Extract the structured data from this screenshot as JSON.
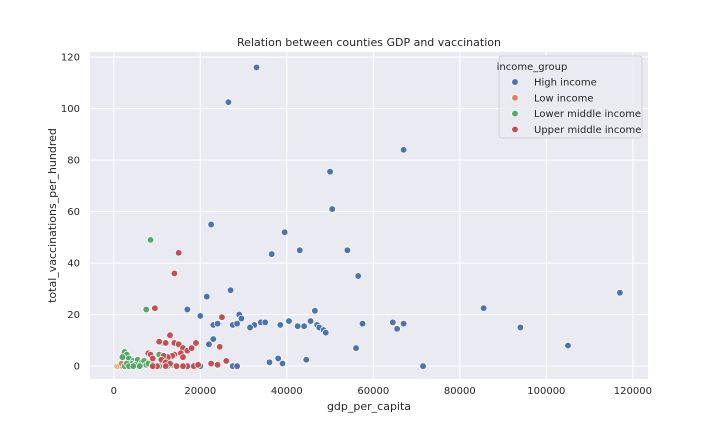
{
  "chart_data": {
    "type": "scatter",
    "title": "Relation between counties GDP and vaccination",
    "xlabel": "gdp_per_capita",
    "ylabel": "total_vaccinations_per_hundred",
    "xlim": [
      -5500,
      123500
    ],
    "ylim": [
      -5,
      122
    ],
    "xticks": [
      0,
      20000,
      40000,
      60000,
      80000,
      100000,
      120000
    ],
    "yticks": [
      0,
      20,
      40,
      60,
      80,
      100,
      120
    ],
    "grid": true,
    "legend": {
      "title": "income_group",
      "position": "top-right"
    },
    "series": [
      {
        "name": "High income",
        "color": "#4c72b0",
        "points": [
          [
            33000,
            116
          ],
          [
            26500,
            102.5
          ],
          [
            67000,
            84
          ],
          [
            50000,
            75.5
          ],
          [
            50500,
            61
          ],
          [
            22500,
            55
          ],
          [
            39500,
            52
          ],
          [
            43000,
            45
          ],
          [
            54000,
            45
          ],
          [
            36500,
            43.5
          ],
          [
            56500,
            35
          ],
          [
            27000,
            29.5
          ],
          [
            117000,
            28.5
          ],
          [
            21500,
            27
          ],
          [
            85500,
            22.5
          ],
          [
            17000,
            22
          ],
          [
            46500,
            21.5
          ],
          [
            20000,
            19.5
          ],
          [
            29000,
            20
          ],
          [
            29500,
            18.5
          ],
          [
            34000,
            17
          ],
          [
            35000,
            17
          ],
          [
            40500,
            17.5
          ],
          [
            45500,
            17.5
          ],
          [
            64500,
            17
          ],
          [
            57500,
            16.5
          ],
          [
            67000,
            16.5
          ],
          [
            23000,
            16
          ],
          [
            24000,
            16.5
          ],
          [
            27500,
            16
          ],
          [
            28500,
            16.5
          ],
          [
            32500,
            16
          ],
          [
            38500,
            16
          ],
          [
            42500,
            15.5
          ],
          [
            44000,
            15.5
          ],
          [
            47000,
            16
          ],
          [
            31500,
            15
          ],
          [
            47500,
            15
          ],
          [
            48500,
            14
          ],
          [
            49000,
            13
          ],
          [
            65500,
            14.5
          ],
          [
            94000,
            15
          ],
          [
            22000,
            8.5
          ],
          [
            23000,
            10.5
          ],
          [
            105000,
            8
          ],
          [
            56000,
            7
          ],
          [
            36000,
            1.5
          ],
          [
            38000,
            3
          ],
          [
            39000,
            1
          ],
          [
            44500,
            2.5
          ],
          [
            20000,
            0
          ],
          [
            27500,
            0
          ],
          [
            28500,
            0
          ],
          [
            71500,
            0
          ]
        ]
      },
      {
        "name": "Low income",
        "color": "#dd8452",
        "points": [
          [
            800,
            0
          ],
          [
            1200,
            0
          ],
          [
            1500,
            0.3
          ],
          [
            2000,
            0
          ],
          [
            2300,
            0.5
          ],
          [
            1800,
            1
          ]
        ]
      },
      {
        "name": "Lower middle income",
        "color": "#55a868",
        "points": [
          [
            8500,
            49
          ],
          [
            7500,
            22
          ],
          [
            11500,
            9
          ],
          [
            10500,
            4.5
          ],
          [
            2500,
            5.5
          ],
          [
            3000,
            4.5
          ],
          [
            3500,
            3
          ],
          [
            2000,
            3.5
          ],
          [
            4500,
            2
          ],
          [
            5500,
            2.5
          ],
          [
            6500,
            1.5
          ],
          [
            7000,
            2
          ],
          [
            4000,
            1
          ],
          [
            5000,
            0.5
          ],
          [
            6000,
            0
          ],
          [
            7500,
            0.5
          ],
          [
            8000,
            1
          ],
          [
            9000,
            0.5
          ],
          [
            2500,
            0
          ],
          [
            3000,
            1
          ],
          [
            3500,
            0
          ],
          [
            4500,
            0
          ],
          [
            11000,
            1
          ],
          [
            12500,
            0
          ],
          [
            13500,
            0.5
          ],
          [
            9500,
            0
          ],
          [
            10500,
            0
          ]
        ]
      },
      {
        "name": "Upper middle income",
        "color": "#c44e52",
        "points": [
          [
            15000,
            44
          ],
          [
            14000,
            36
          ],
          [
            9500,
            22.5
          ],
          [
            25000,
            19
          ],
          [
            10500,
            9.5
          ],
          [
            12000,
            9
          ],
          [
            13000,
            12
          ],
          [
            14000,
            9
          ],
          [
            15000,
            8.5
          ],
          [
            16000,
            7
          ],
          [
            17000,
            6
          ],
          [
            18000,
            7
          ],
          [
            19000,
            9
          ],
          [
            15500,
            5
          ],
          [
            16000,
            3.5
          ],
          [
            14000,
            4.5
          ],
          [
            13500,
            4
          ],
          [
            12500,
            3.5
          ],
          [
            11500,
            4
          ],
          [
            11000,
            2.5
          ],
          [
            8000,
            5
          ],
          [
            8500,
            4.5
          ],
          [
            9000,
            3
          ],
          [
            12000,
            1.5
          ],
          [
            13000,
            1
          ],
          [
            24500,
            7.5
          ],
          [
            26000,
            2
          ],
          [
            22500,
            1
          ],
          [
            24000,
            0.5
          ],
          [
            18500,
            0
          ],
          [
            19500,
            0.5
          ],
          [
            17000,
            0
          ],
          [
            16000,
            0
          ],
          [
            14500,
            0
          ],
          [
            12000,
            0
          ],
          [
            10000,
            0
          ],
          [
            9000,
            0
          ]
        ]
      }
    ]
  }
}
